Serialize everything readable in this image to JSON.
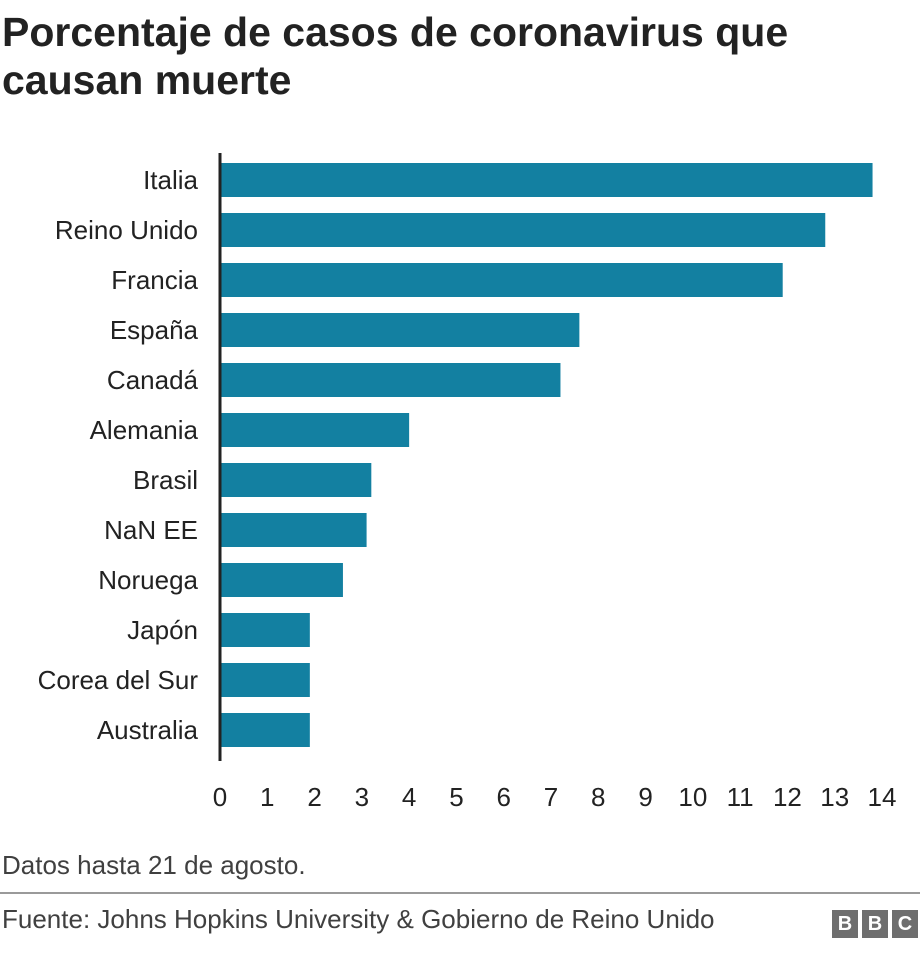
{
  "title": "Porcentaje de casos de coronavirus que causan muerte",
  "note": "Datos hasta 21 de agosto.",
  "source": "Fuente: Johns Hopkins University & Gobierno de Reino Unido",
  "logo": {
    "letters": [
      "B",
      "B",
      "C"
    ]
  },
  "colors": {
    "bar": "#1380A1",
    "axis": "#222222",
    "text": "#222222",
    "muted": "#404040"
  },
  "chart_data": {
    "type": "bar",
    "orientation": "horizontal",
    "title": "Porcentaje de casos de coronavirus que causan muerte",
    "categories": [
      "Italia",
      "Reino Unido",
      "Francia",
      "España",
      "Canadá",
      "Alemania",
      "Brasil",
      "NaN EE",
      "Noruega",
      "Japón",
      "Corea del Sur",
      "Australia"
    ],
    "values": [
      13.8,
      12.8,
      11.9,
      7.6,
      7.2,
      4.0,
      3.2,
      3.1,
      2.6,
      1.9,
      1.9,
      1.9
    ],
    "xlim": [
      0,
      14
    ],
    "xticks": [
      0,
      1,
      2,
      3,
      4,
      5,
      6,
      7,
      8,
      9,
      10,
      11,
      12,
      13,
      14
    ],
    "grid": false,
    "legend": "none"
  }
}
